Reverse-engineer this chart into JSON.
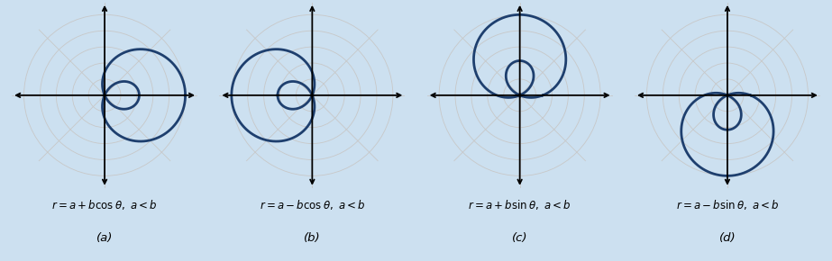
{
  "background_color": "#cce0f0",
  "panel_color": "#ffffff",
  "curve_color": "#1e3f6e",
  "grid_color": "#c8c8c8",
  "axis_color": "#000000",
  "a": 1.0,
  "b": 2.5,
  "num_circles": 5,
  "panels": [
    {
      "label": "(a)",
      "type": "cos_plus"
    },
    {
      "label": "(b)",
      "type": "cos_minus"
    },
    {
      "label": "(c)",
      "type": "sin_plus"
    },
    {
      "label": "(d)",
      "type": "sin_minus"
    }
  ],
  "curve_linewidth": 2.0,
  "grid_linewidth": 0.6,
  "axis_linewidth": 1.3,
  "formula_fontsize": 8.5,
  "label_fontsize": 9.5
}
